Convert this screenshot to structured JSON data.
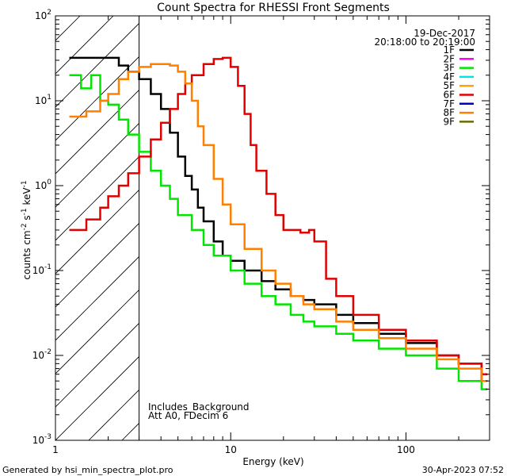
{
  "chart_data": {
    "type": "line",
    "title": "Count Spectra for RHESSI Front Segments",
    "xlabel": "Energy (keV)",
    "ylabel_parts": {
      "base": "counts cm",
      "e1": "-2",
      "mid1": " s",
      "e2": "-1",
      "mid2": " keV",
      "e3": "-1"
    },
    "x_scale": "log",
    "y_scale": "log",
    "xlim": [
      1,
      300
    ],
    "ylim": [
      0.001,
      100
    ],
    "x_tick_labels": [
      {
        "v": 1,
        "t": "1"
      },
      {
        "v": 10,
        "t": "10"
      },
      {
        "v": 100,
        "t": "100"
      }
    ],
    "y_tick_labels": [
      {
        "v": 0.001,
        "b": "10",
        "e": "-3"
      },
      {
        "v": 0.01,
        "b": "10",
        "e": "-2"
      },
      {
        "v": 0.1,
        "b": "10",
        "e": "-1"
      },
      {
        "v": 1,
        "b": "10",
        "e": "0"
      },
      {
        "v": 10,
        "b": "10",
        "e": "1"
      },
      {
        "v": 100,
        "b": "10",
        "e": "2"
      }
    ],
    "date": "19-Dec-2017",
    "time_range": "20:18:00 to 20:19:00",
    "excluded_region_max_kev": 3,
    "annotations": [
      "Includes_Background",
      "Att A0, FDecim 6"
    ],
    "legend": [
      {
        "name": "1F",
        "color": "#000000"
      },
      {
        "name": "2F",
        "color": "#ff00ff"
      },
      {
        "name": "3F",
        "color": "#00e600"
      },
      {
        "name": "4F",
        "color": "#00e6e6"
      },
      {
        "name": "5F",
        "color": "#ffa500"
      },
      {
        "name": "6F",
        "color": "#e00000"
      },
      {
        "name": "7F",
        "color": "#0000c0"
      },
      {
        "name": "8F",
        "color": "#ff8000"
      },
      {
        "name": "9F",
        "color": "#6b6b00"
      }
    ],
    "series": [
      {
        "name": "1F",
        "color": "#000000",
        "points": [
          [
            1.2,
            32
          ],
          [
            2.0,
            32
          ],
          [
            2.3,
            26
          ],
          [
            2.6,
            22
          ],
          [
            3.0,
            18
          ],
          [
            3.5,
            12
          ],
          [
            4.0,
            8
          ],
          [
            4.5,
            4.2
          ],
          [
            5.0,
            2.2
          ],
          [
            5.5,
            1.3
          ],
          [
            6.0,
            0.9
          ],
          [
            6.5,
            0.55
          ],
          [
            7.0,
            0.38
          ],
          [
            8.0,
            0.22
          ],
          [
            9.0,
            0.15
          ],
          [
            10,
            0.13
          ],
          [
            12,
            0.1
          ],
          [
            15,
            0.075
          ],
          [
            18,
            0.06
          ],
          [
            22,
            0.05
          ],
          [
            26,
            0.045
          ],
          [
            30,
            0.04
          ],
          [
            40,
            0.03
          ],
          [
            50,
            0.024
          ],
          [
            70,
            0.018
          ],
          [
            100,
            0.014
          ],
          [
            150,
            0.01
          ],
          [
            200,
            0.008
          ],
          [
            270,
            0.005
          ]
        ]
      },
      {
        "name": "3F",
        "color": "#00e600",
        "points": [
          [
            1.2,
            20
          ],
          [
            1.4,
            14
          ],
          [
            1.6,
            20
          ],
          [
            1.8,
            10
          ],
          [
            2.0,
            9
          ],
          [
            2.3,
            6
          ],
          [
            2.6,
            4
          ],
          [
            3.0,
            2.5
          ],
          [
            3.5,
            1.5
          ],
          [
            4.0,
            1.0
          ],
          [
            4.5,
            0.7
          ],
          [
            5.0,
            0.45
          ],
          [
            6.0,
            0.3
          ],
          [
            7.0,
            0.2
          ],
          [
            8.0,
            0.15
          ],
          [
            10,
            0.1
          ],
          [
            12,
            0.07
          ],
          [
            15,
            0.05
          ],
          [
            18,
            0.04
          ],
          [
            22,
            0.03
          ],
          [
            26,
            0.025
          ],
          [
            30,
            0.022
          ],
          [
            40,
            0.018
          ],
          [
            50,
            0.015
          ],
          [
            70,
            0.012
          ],
          [
            100,
            0.01
          ],
          [
            150,
            0.007
          ],
          [
            200,
            0.005
          ],
          [
            270,
            0.004
          ]
        ]
      },
      {
        "name": "6F",
        "color": "#e00000",
        "points": [
          [
            1.2,
            0.3
          ],
          [
            1.5,
            0.4
          ],
          [
            1.8,
            0.55
          ],
          [
            2.0,
            0.75
          ],
          [
            2.3,
            1.0
          ],
          [
            2.6,
            1.4
          ],
          [
            3.0,
            2.2
          ],
          [
            3.5,
            3.5
          ],
          [
            4.0,
            5.5
          ],
          [
            4.5,
            8
          ],
          [
            5.0,
            12
          ],
          [
            5.5,
            16
          ],
          [
            6.0,
            20
          ],
          [
            7.0,
            27
          ],
          [
            8.0,
            31
          ],
          [
            9.0,
            32
          ],
          [
            10,
            25
          ],
          [
            11,
            15
          ],
          [
            12,
            7
          ],
          [
            13,
            3
          ],
          [
            14,
            1.5
          ],
          [
            16,
            0.8
          ],
          [
            18,
            0.45
          ],
          [
            20,
            0.3
          ],
          [
            25,
            0.28
          ],
          [
            28,
            0.3
          ],
          [
            30,
            0.22
          ],
          [
            35,
            0.08
          ],
          [
            40,
            0.05
          ],
          [
            50,
            0.03
          ],
          [
            70,
            0.02
          ],
          [
            100,
            0.015
          ],
          [
            150,
            0.01
          ],
          [
            200,
            0.008
          ],
          [
            270,
            0.006
          ]
        ]
      },
      {
        "name": "8F",
        "color": "#ff8000",
        "points": [
          [
            1.2,
            6.5
          ],
          [
            1.5,
            7.5
          ],
          [
            1.8,
            10
          ],
          [
            2.0,
            12
          ],
          [
            2.3,
            18
          ],
          [
            2.6,
            22
          ],
          [
            3.0,
            25
          ],
          [
            3.5,
            27
          ],
          [
            4.0,
            27
          ],
          [
            4.5,
            26
          ],
          [
            5.0,
            22
          ],
          [
            5.5,
            16
          ],
          [
            6.0,
            10
          ],
          [
            6.5,
            5
          ],
          [
            7.0,
            3
          ],
          [
            8.0,
            1.2
          ],
          [
            9.0,
            0.6
          ],
          [
            10,
            0.35
          ],
          [
            12,
            0.18
          ],
          [
            15,
            0.1
          ],
          [
            18,
            0.07
          ],
          [
            22,
            0.05
          ],
          [
            26,
            0.04
          ],
          [
            30,
            0.035
          ],
          [
            40,
            0.025
          ],
          [
            50,
            0.02
          ],
          [
            70,
            0.016
          ],
          [
            100,
            0.012
          ],
          [
            150,
            0.009
          ],
          [
            200,
            0.007
          ],
          [
            270,
            0.005
          ]
        ]
      }
    ]
  },
  "footer": {
    "left": "Generated by hsi_min_spectra_plot.pro",
    "right": "30-Apr-2023 07:52"
  }
}
